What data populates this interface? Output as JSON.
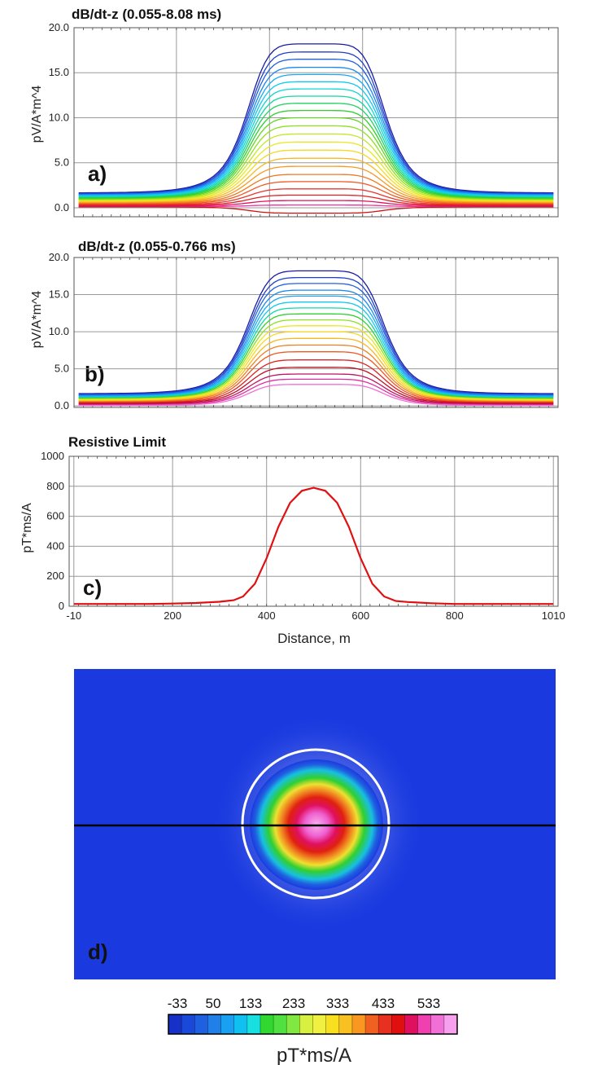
{
  "chart_data": [
    {
      "id": "a",
      "type": "line",
      "title": "dB/dt-z (0.055-8.08 ms)",
      "ylabel": "pV/A*m^4",
      "panel_label": "a)",
      "xlim": [
        -20,
        1020
      ],
      "ylim": [
        -1,
        20
      ],
      "y_ticks": [
        "0.0",
        "5.0",
        "10.0",
        "15.0",
        "20.0"
      ],
      "y_tick_values": [
        0,
        5,
        10,
        15,
        20
      ],
      "x_grid": [
        200,
        400,
        600,
        800
      ],
      "grid": true,
      "n_series": 24,
      "peak_values": [
        18.2,
        17.3,
        16.5,
        15.6,
        14.8,
        14.0,
        13.2,
        12.4,
        11.6,
        10.8,
        10.0,
        9.1,
        8.2,
        7.3,
        6.4,
        5.5,
        4.6,
        3.7,
        2.9,
        2.1,
        1.4,
        0.8,
        0.3,
        -0.6
      ],
      "colors": [
        "#1a1aa8",
        "#1f3fc8",
        "#2060e0",
        "#1c86f0",
        "#18a8f5",
        "#10c8f0",
        "#10d8d0",
        "#10d8a0",
        "#20d060",
        "#30d030",
        "#60d820",
        "#90e020",
        "#c0e820",
        "#e8e820",
        "#f8d820",
        "#f8b820",
        "#f89820",
        "#f07820",
        "#f05820",
        "#e83830",
        "#e02020",
        "#e01060",
        "#f030a0",
        "#d01010"
      ]
    },
    {
      "id": "b",
      "type": "line",
      "title": "dB/dt-z (0.055-0.766 ms)",
      "ylabel": "pV/A*m^4",
      "panel_label": "b)",
      "xlim": [
        -20,
        1020
      ],
      "ylim": [
        -0.2,
        20
      ],
      "y_ticks": [
        "0.0",
        "5.0",
        "10.0",
        "15.0",
        "20.0"
      ],
      "y_tick_values": [
        0,
        5,
        10,
        15,
        20
      ],
      "x_grid": [
        200,
        400,
        600,
        800
      ],
      "grid": true,
      "n_series": 19,
      "peak_values": [
        18.2,
        17.3,
        16.5,
        15.6,
        14.8,
        14.0,
        13.2,
        12.4,
        11.6,
        10.8,
        10.0,
        9.1,
        8.2,
        7.3,
        6.2,
        5.2,
        4.3,
        3.6,
        2.9
      ],
      "colors": [
        "#1a1aa8",
        "#1f3fc8",
        "#2060e0",
        "#1c86f0",
        "#18a8f5",
        "#10c8f0",
        "#10d8a0",
        "#30d030",
        "#90e020",
        "#e8e820",
        "#f8d820",
        "#f8b820",
        "#f08020",
        "#f05820",
        "#e02020",
        "#c01020",
        "#c01060",
        "#e030a0",
        "#f070d8"
      ]
    },
    {
      "id": "c",
      "type": "line",
      "title": "Resistive Limit",
      "ylabel": "pT*ms/A",
      "xlabel": "Distance, m",
      "panel_label": "c)",
      "xlim": [
        -20,
        1020
      ],
      "ylim": [
        0,
        1000
      ],
      "x_ticks": [
        "-10",
        "200",
        "400",
        "600",
        "800",
        "1010"
      ],
      "x_tick_values": [
        -10,
        200,
        400,
        600,
        800,
        1010
      ],
      "y_ticks": [
        "0",
        "200",
        "400",
        "600",
        "800",
        "1000"
      ],
      "y_tick_values": [
        0,
        200,
        400,
        600,
        800,
        1000
      ],
      "grid": true,
      "series": [
        {
          "color": "#e01010",
          "x": [
            -10,
            50,
            100,
            150,
            200,
            250,
            300,
            330,
            350,
            375,
            400,
            425,
            450,
            475,
            500,
            525,
            550,
            575,
            600,
            625,
            650,
            675,
            700,
            750,
            800,
            850,
            900,
            950,
            1010
          ],
          "y": [
            15,
            15,
            15,
            15,
            18,
            22,
            30,
            40,
            65,
            150,
            320,
            530,
            690,
            770,
            790,
            770,
            690,
            530,
            320,
            150,
            65,
            35,
            28,
            20,
            15,
            15,
            15,
            15,
            15
          ]
        }
      ]
    },
    {
      "id": "d",
      "type": "heatmap",
      "panel_label": "d)",
      "colorbar": {
        "label": "pT*ms/A",
        "ticks": [
          "-33",
          "50",
          "133",
          "233",
          "333",
          "433",
          "533"
        ],
        "colors": [
          "#1630c8",
          "#1a48d8",
          "#1e60e0",
          "#2080e8",
          "#1aa0f0",
          "#10c0f0",
          "#18e0e0",
          "#30d830",
          "#50e040",
          "#80e840",
          "#d8f040",
          "#f0f040",
          "#f8e020",
          "#f8c020",
          "#f89820",
          "#f06020",
          "#e83020",
          "#e01010",
          "#e01060",
          "#f040b0",
          "#f070d8",
          "#f8a0f0"
        ]
      },
      "background": "#1a3ae0"
    }
  ]
}
